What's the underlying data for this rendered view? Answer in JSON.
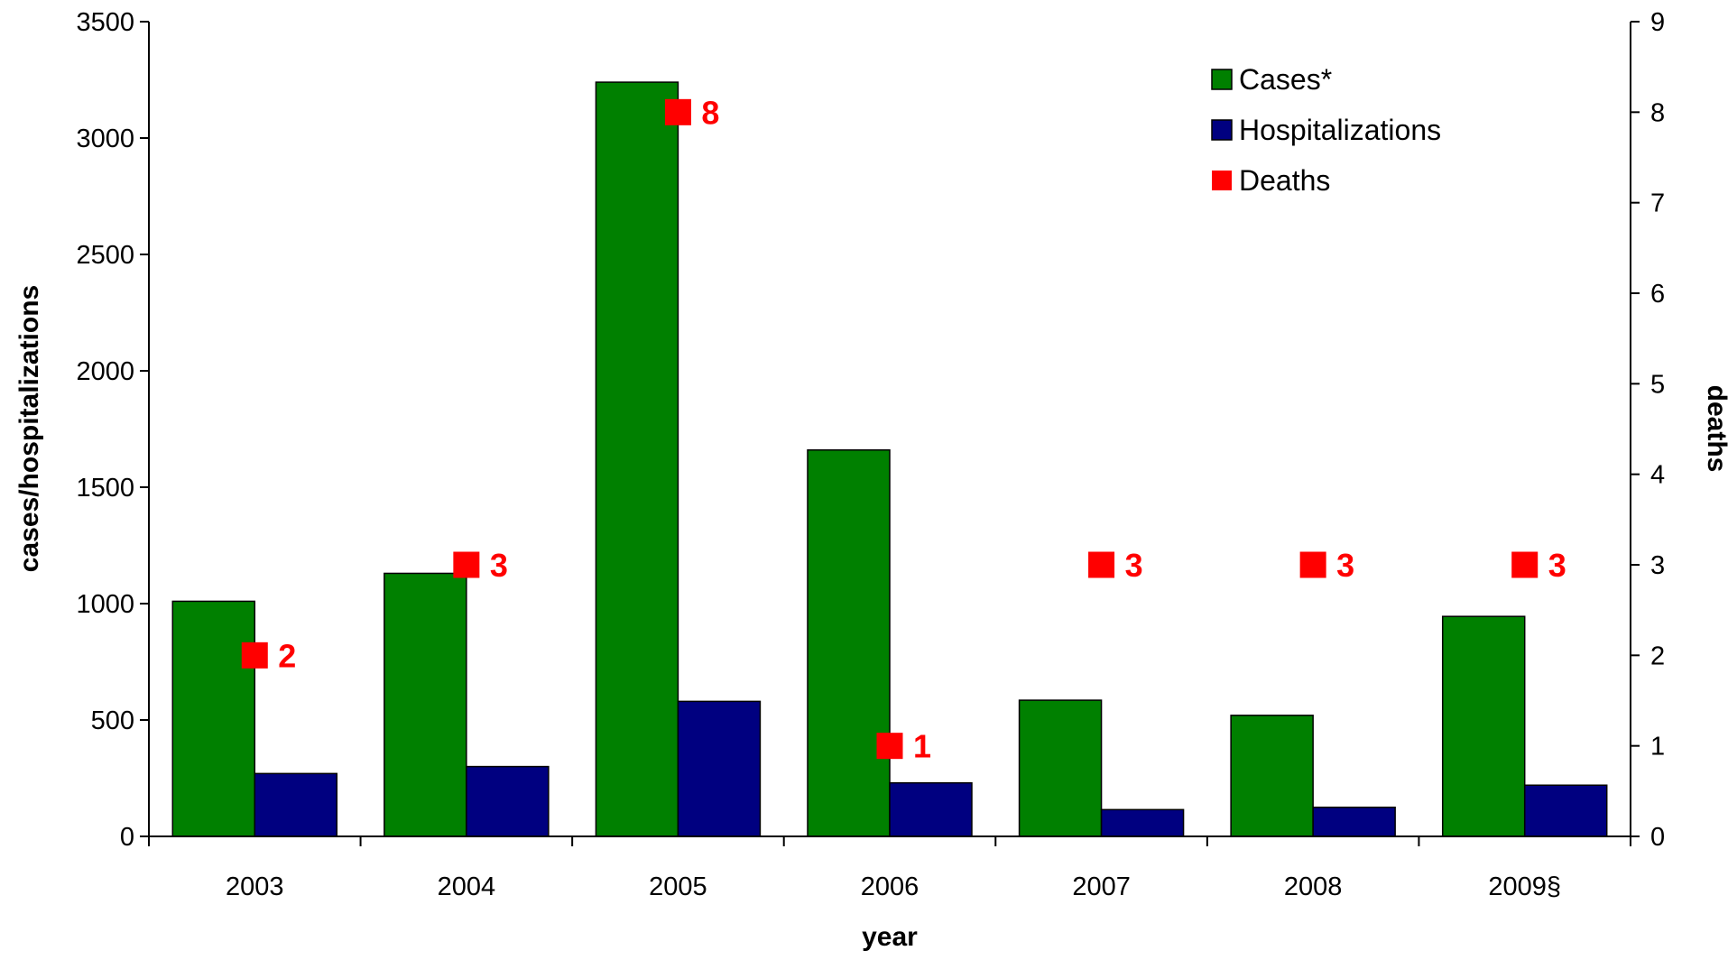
{
  "chart_data": {
    "type": "bar",
    "categories": [
      "2003",
      "2004",
      "2005",
      "2006",
      "2007",
      "2008",
      "2009§"
    ],
    "series": [
      {
        "name": "Cases*",
        "axis": "left",
        "kind": "bar",
        "color": "#008000",
        "values": [
          1010,
          1130,
          3240,
          1660,
          585,
          520,
          945
        ]
      },
      {
        "name": "Hospitalizations",
        "axis": "left",
        "kind": "bar",
        "color": "#000080",
        "values": [
          270,
          300,
          580,
          230,
          115,
          125,
          220
        ]
      },
      {
        "name": "Deaths",
        "axis": "right",
        "kind": "marker",
        "color": "#ff0000",
        "values": [
          2,
          3,
          8,
          1,
          3,
          3,
          3
        ],
        "labels": [
          "2",
          "3",
          "8",
          "1",
          "3",
          "3",
          "3"
        ]
      }
    ],
    "xlabel": "year",
    "ylabel": "cases/hospitalizations",
    "y2label": "deaths",
    "ylim": [
      0,
      3500
    ],
    "yticks": [
      "0",
      "500",
      "1000",
      "1500",
      "2000",
      "2500",
      "3000",
      "3500"
    ],
    "y2lim": [
      0,
      9
    ],
    "y2ticks": [
      "0",
      "1",
      "2",
      "3",
      "4",
      "5",
      "6",
      "7",
      "8",
      "9"
    ],
    "grid": false,
    "legend_position": "top-right"
  }
}
